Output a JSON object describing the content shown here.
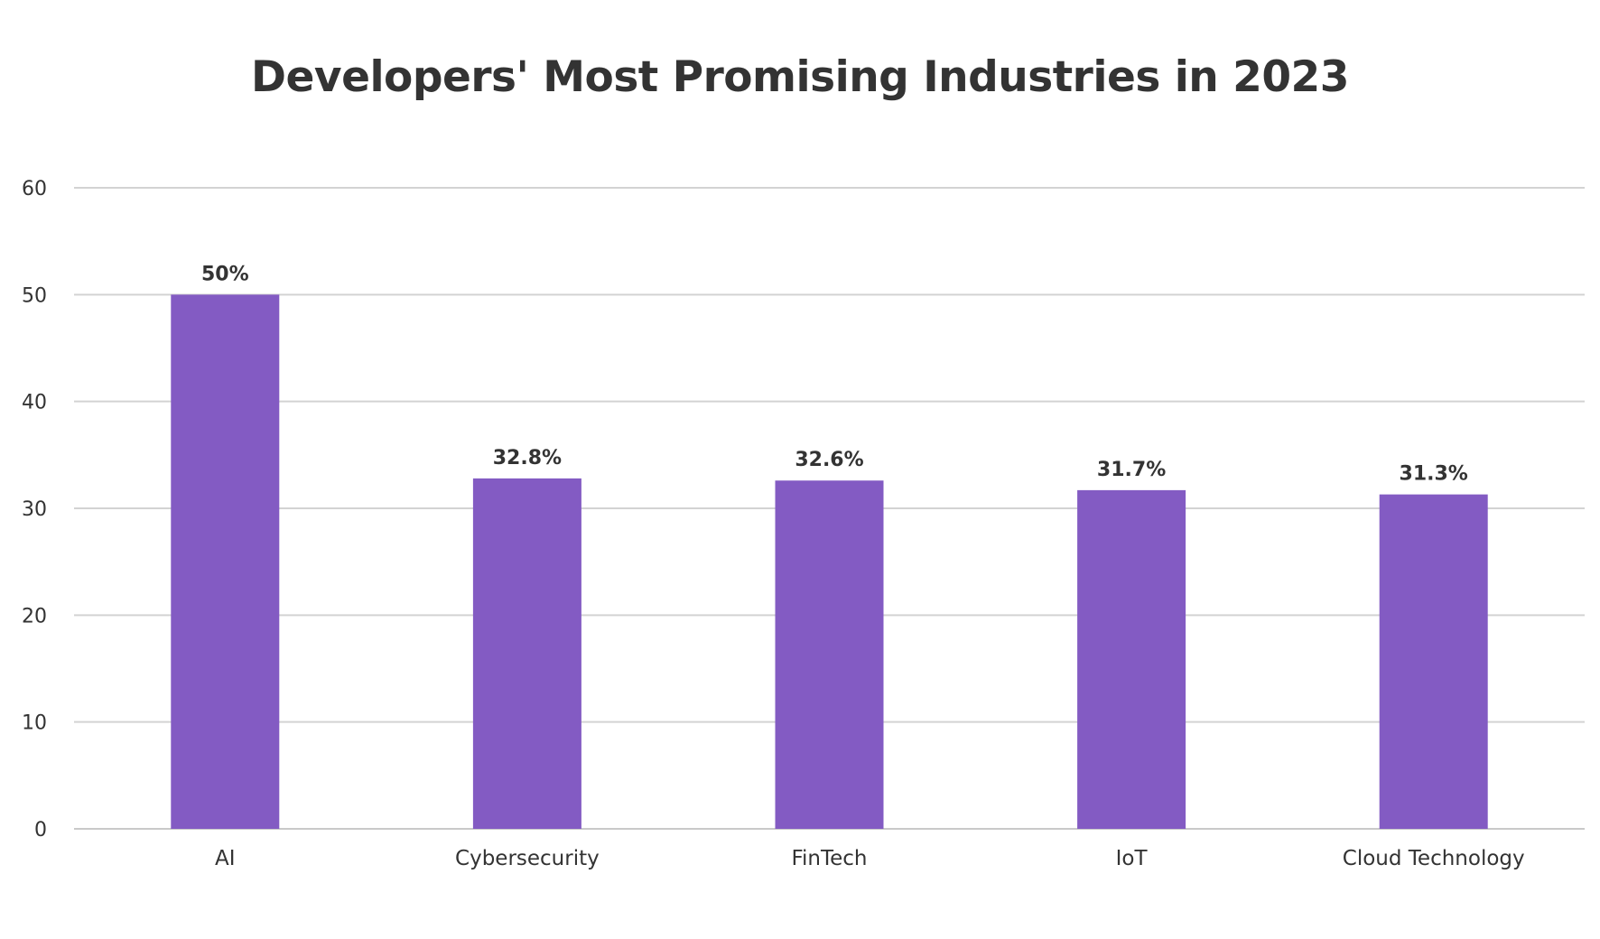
{
  "chart_data": {
    "type": "bar",
    "title": "Developers' Most Promising Industries in 2023",
    "xlabel": "",
    "ylabel": "",
    "categories": [
      "AI",
      "Cybersecurity",
      "FinTech",
      "IoT",
      "Cloud Technology"
    ],
    "values": [
      50,
      32.8,
      32.6,
      31.7,
      31.3
    ],
    "data_labels": [
      "50%",
      "32.8%",
      "32.6%",
      "31.7%",
      "31.3%"
    ],
    "y_ticks": [
      0,
      10,
      20,
      30,
      40,
      50,
      60
    ],
    "ylim": [
      0,
      60
    ],
    "grid": true,
    "legend": "none",
    "bar_color": "#835bc3",
    "text_color": "#333333",
    "grid_color": "#d3d3d3"
  }
}
